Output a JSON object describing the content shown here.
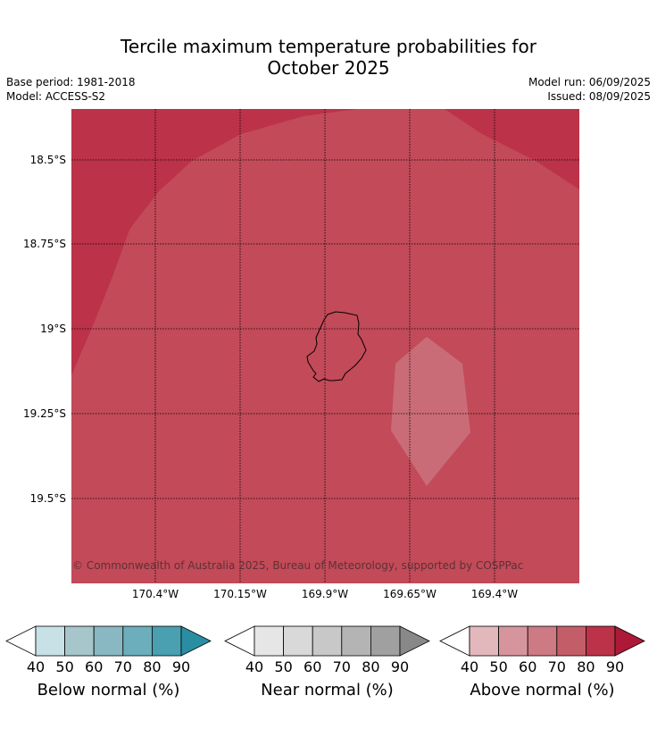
{
  "title": {
    "line1": "Tercile maximum temperature probabilities for",
    "line2": "October 2025"
  },
  "meta": {
    "base_period": "Base period: 1981-2018",
    "model": "Model: ACCESS-S2",
    "model_run": "Model run: 06/09/2025",
    "issued": "Issued: 08/09/2025"
  },
  "map": {
    "lat_labels": [
      "18.5°S",
      "18.75°S",
      "19°S",
      "19.25°S",
      "19.5°S"
    ],
    "lon_labels": [
      "170.4°W",
      "170.15°W",
      "169.9°W",
      "169.65°W",
      "169.4°W"
    ],
    "copyright": "© Commonwealth of Australia 2025, Bureau of Meteorology, supported by COSPPac",
    "colors": {
      "above_80": "#bb3249",
      "above_70": "#c24a59",
      "above_60": "#c96c77",
      "coastline": "#000000",
      "grid": "#000000"
    }
  },
  "colorbars": [
    {
      "label": "Below normal (%)",
      "ticks": [
        "40",
        "50",
        "60",
        "70",
        "80",
        "90"
      ],
      "colors": [
        "#c8e1e7",
        "#a6c6cc",
        "#8ab8c2",
        "#6caebb",
        "#4a9fb0",
        "#2a8ea3"
      ]
    },
    {
      "label": "Near normal (%)",
      "ticks": [
        "40",
        "50",
        "60",
        "70",
        "80",
        "90"
      ],
      "colors": [
        "#e6e6e6",
        "#d9d9d9",
        "#c8c8c8",
        "#b4b4b4",
        "#a0a0a0",
        "#888888"
      ]
    },
    {
      "label": "Above normal (%)",
      "ticks": [
        "40",
        "50",
        "60",
        "70",
        "80",
        "90"
      ],
      "colors": [
        "#e3b8bd",
        "#d6959d",
        "#cd7a84",
        "#c35e69",
        "#bb3249",
        "#ad1a38"
      ]
    }
  ]
}
